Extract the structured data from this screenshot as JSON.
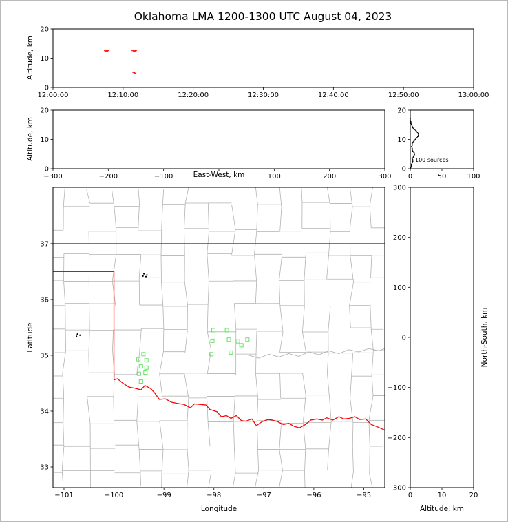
{
  "frame": {
    "title": "Oklahoma LMA 1200-1300 UTC August 04, 2023",
    "background": "#ffffff",
    "border_color": "#b9b9b9"
  },
  "colors": {
    "axis": "#000000",
    "text": "#000000",
    "county_line": "#b3b3b3",
    "river": "#b3b3b3",
    "state_border": "#ff0000",
    "time_series_marker": "#ff2020",
    "map_source_marker": "#63e463",
    "histogram_line": "#000000",
    "station_dot": "#000000"
  },
  "chart_data": [
    {
      "id": "time_height_panel",
      "type": "scatter",
      "xlabel": "",
      "ylabel": "Altitude, km",
      "xlim": [
        0,
        3600
      ],
      "ylim": [
        0,
        20
      ],
      "xticks": [
        {
          "v": 0,
          "label": "12:00:00"
        },
        {
          "v": 600,
          "label": "12:10:00"
        },
        {
          "v": 1200,
          "label": "12:20:00"
        },
        {
          "v": 1800,
          "label": "12:30:00"
        },
        {
          "v": 2400,
          "label": "12:40:00"
        },
        {
          "v": 3000,
          "label": "12:50:00"
        },
        {
          "v": 3600,
          "label": "13:00:00"
        }
      ],
      "yticks": [
        {
          "v": 0,
          "label": "0"
        },
        {
          "v": 10,
          "label": "10"
        },
        {
          "v": 20,
          "label": "20"
        }
      ],
      "series": [
        {
          "name": "vhf-sources-time",
          "marker": "dash",
          "color": "#ff2020",
          "points": [
            [
              448,
              12.6
            ],
            [
              460,
              12.3
            ],
            [
              472,
              12.6
            ],
            [
              684,
              12.6
            ],
            [
              696,
              12.3
            ],
            [
              706,
              12.6
            ],
            [
              692,
              5.1
            ],
            [
              702,
              4.8
            ]
          ]
        }
      ]
    },
    {
      "id": "ew_height_panel",
      "type": "scatter",
      "xlabel": "East-West, km",
      "ylabel": "Altitude, km",
      "xlim": [
        -300,
        300
      ],
      "ylim": [
        0,
        20
      ],
      "xticks": [
        {
          "v": -300,
          "label": "−300"
        },
        {
          "v": -200,
          "label": "−200"
        },
        {
          "v": -100,
          "label": "−100"
        },
        {
          "v": 0,
          "label": ""
        },
        {
          "v": 100,
          "label": "100"
        },
        {
          "v": 200,
          "label": "200"
        },
        {
          "v": 300,
          "label": "300"
        }
      ],
      "yticks": [
        {
          "v": 0,
          "label": "0"
        },
        {
          "v": 10,
          "label": "10"
        },
        {
          "v": 20,
          "label": "20"
        }
      ],
      "series": [
        {
          "name": "vhf-sources-ew",
          "marker": "dot",
          "color": "#000000",
          "points": []
        }
      ]
    },
    {
      "id": "alt_histogram_panel",
      "type": "profile",
      "xlabel": "",
      "ylabel": "",
      "annotation": "100 sources",
      "xlim": [
        0,
        100
      ],
      "ylim": [
        0,
        20
      ],
      "xticks": [
        {
          "v": 0,
          "label": "0"
        },
        {
          "v": 50,
          "label": "50"
        },
        {
          "v": 100,
          "label": "100"
        }
      ],
      "yticks": [
        {
          "v": 0,
          "label": "0"
        },
        {
          "v": 10,
          "label": "10"
        },
        {
          "v": 20,
          "label": "20"
        }
      ],
      "profile": [
        [
          0,
          0
        ],
        [
          0.5,
          1
        ],
        [
          1,
          2
        ],
        [
          1.5,
          2
        ],
        [
          2,
          3
        ],
        [
          2.5,
          4
        ],
        [
          3,
          4
        ],
        [
          3.5,
          3
        ],
        [
          4,
          5
        ],
        [
          4.5,
          6
        ],
        [
          5,
          7
        ],
        [
          5.5,
          6
        ],
        [
          6,
          4
        ],
        [
          6.5,
          3
        ],
        [
          7,
          3
        ],
        [
          7.5,
          2
        ],
        [
          8,
          3
        ],
        [
          8.5,
          3
        ],
        [
          9,
          4
        ],
        [
          9.5,
          6
        ],
        [
          10,
          8
        ],
        [
          10.5,
          10
        ],
        [
          11,
          12
        ],
        [
          11.5,
          13
        ],
        [
          12,
          13
        ],
        [
          12.5,
          11
        ],
        [
          13,
          9
        ],
        [
          13.5,
          6
        ],
        [
          14,
          4
        ],
        [
          14.5,
          3
        ],
        [
          15,
          2
        ],
        [
          15.5,
          1
        ],
        [
          16,
          1
        ],
        [
          16.5,
          0
        ],
        [
          17,
          0
        ]
      ]
    },
    {
      "id": "map_panel",
      "type": "map",
      "xlabel": "Longitude",
      "ylabel": "Latitude",
      "xlim": [
        -101.22,
        -94.58
      ],
      "ylim": [
        32.63,
        38.01
      ],
      "xticks": [
        {
          "v": -101,
          "label": "−101"
        },
        {
          "v": -100,
          "label": "−100"
        },
        {
          "v": -99,
          "label": "−99"
        },
        {
          "v": -98,
          "label": "−98"
        },
        {
          "v": -97,
          "label": "−97"
        },
        {
          "v": -96,
          "label": "−96"
        },
        {
          "v": -95,
          "label": "−95"
        }
      ],
      "yticks": [
        {
          "v": 33,
          "label": "33"
        },
        {
          "v": 34,
          "label": "34"
        },
        {
          "v": 35,
          "label": "35"
        },
        {
          "v": 36,
          "label": "36"
        },
        {
          "v": 37,
          "label": "37"
        }
      ],
      "sources": [
        [
          -98.01,
          35.45
        ],
        [
          -97.74,
          35.45
        ],
        [
          -98.03,
          35.26
        ],
        [
          -97.7,
          35.28
        ],
        [
          -97.52,
          35.25
        ],
        [
          -97.33,
          35.28
        ],
        [
          -98.05,
          35.02
        ],
        [
          -97.66,
          35.05
        ],
        [
          -97.45,
          35.18
        ],
        [
          -99.41,
          35.02
        ],
        [
          -99.51,
          34.93
        ],
        [
          -99.35,
          34.91
        ],
        [
          -99.46,
          34.8
        ],
        [
          -99.35,
          34.78
        ],
        [
          -99.5,
          34.67
        ],
        [
          -99.37,
          34.69
        ],
        [
          -99.46,
          34.53
        ]
      ],
      "station_dots": [
        [
          -99.4,
          36.46
        ],
        [
          -99.34,
          36.44
        ],
        [
          -99.42,
          36.42
        ],
        [
          -99.36,
          36.41
        ],
        [
          -100.73,
          35.38
        ],
        [
          -100.68,
          35.36
        ],
        [
          -100.75,
          35.34
        ]
      ]
    },
    {
      "id": "ns_height_panel",
      "type": "scatter",
      "xlabel": "Altitude, km",
      "ylabel_right": "North-South, km",
      "xlim": [
        0,
        20
      ],
      "ylim": [
        -300,
        300
      ],
      "xticks": [
        {
          "v": 0,
          "label": "0"
        },
        {
          "v": 10,
          "label": "10"
        },
        {
          "v": 20,
          "label": "20"
        }
      ],
      "yticks": [
        {
          "v": 300,
          "label": "300"
        },
        {
          "v": 200,
          "label": "200"
        },
        {
          "v": 100,
          "label": "100"
        },
        {
          "v": 0,
          "label": "0"
        },
        {
          "v": -100,
          "label": "−100"
        },
        {
          "v": -200,
          "label": "−200"
        },
        {
          "v": -300,
          "label": "−300"
        }
      ],
      "series": [
        {
          "name": "vhf-sources-ns",
          "marker": "dot",
          "color": "#000000",
          "points": []
        }
      ]
    }
  ],
  "map_layers": {
    "state_border": [
      [
        [
          -101.22,
          37.0
        ],
        [
          -94.58,
          37.0
        ]
      ],
      [
        [
          -101.22,
          36.5
        ],
        [
          -100.0,
          36.5
        ],
        [
          -100.0,
          34.56
        ]
      ],
      [
        [
          -100.0,
          34.56
        ],
        [
          -99.93,
          34.58
        ],
        [
          -99.82,
          34.5
        ],
        [
          -99.7,
          34.43
        ],
        [
          -99.58,
          34.41
        ],
        [
          -99.46,
          34.38
        ],
        [
          -99.38,
          34.46
        ],
        [
          -99.26,
          34.4
        ],
        [
          -99.19,
          34.33
        ],
        [
          -99.09,
          34.21
        ],
        [
          -98.97,
          34.22
        ],
        [
          -98.85,
          34.16
        ],
        [
          -98.74,
          34.14
        ],
        [
          -98.6,
          34.12
        ],
        [
          -98.47,
          34.06
        ],
        [
          -98.39,
          34.13
        ],
        [
          -98.28,
          34.12
        ],
        [
          -98.16,
          34.11
        ],
        [
          -98.08,
          34.03
        ],
        [
          -97.94,
          33.99
        ],
        [
          -97.85,
          33.9
        ],
        [
          -97.75,
          33.92
        ],
        [
          -97.66,
          33.87
        ],
        [
          -97.55,
          33.92
        ],
        [
          -97.45,
          33.83
        ],
        [
          -97.36,
          33.82
        ],
        [
          -97.24,
          33.86
        ],
        [
          -97.15,
          33.74
        ],
        [
          -97.04,
          33.81
        ],
        [
          -96.92,
          33.85
        ],
        [
          -96.83,
          33.84
        ],
        [
          -96.72,
          33.81
        ],
        [
          -96.61,
          33.76
        ],
        [
          -96.5,
          33.78
        ],
        [
          -96.4,
          33.73
        ],
        [
          -96.29,
          33.7
        ],
        [
          -96.17,
          33.76
        ],
        [
          -96.06,
          33.84
        ],
        [
          -95.94,
          33.86
        ],
        [
          -95.83,
          33.84
        ],
        [
          -95.74,
          33.88
        ],
        [
          -95.62,
          33.84
        ],
        [
          -95.5,
          33.9
        ],
        [
          -95.4,
          33.86
        ],
        [
          -95.29,
          33.87
        ],
        [
          -95.18,
          33.9
        ],
        [
          -95.08,
          33.85
        ],
        [
          -94.96,
          33.86
        ],
        [
          -94.85,
          33.76
        ],
        [
          -94.73,
          33.72
        ],
        [
          -94.58,
          33.66
        ]
      ]
    ],
    "county_grid": {
      "lons": [
        -101.0,
        -100.5,
        -100.0,
        -99.5,
        -99.05,
        -98.55,
        -98.1,
        -97.6,
        -97.15,
        -96.65,
        -96.2,
        -95.7,
        -95.25,
        -94.85
      ],
      "lats": [
        32.9,
        33.35,
        33.8,
        34.25,
        34.65,
        35.05,
        35.45,
        35.9,
        36.35,
        36.8,
        37.25,
        37.7
      ]
    },
    "rivers": [
      [
        [
          -97.3,
          35.0
        ],
        [
          -97.1,
          34.95
        ],
        [
          -96.9,
          35.02
        ],
        [
          -96.7,
          34.97
        ],
        [
          -96.5,
          35.03
        ],
        [
          -96.3,
          34.98
        ],
        [
          -96.1,
          35.06
        ],
        [
          -95.9,
          35.01
        ],
        [
          -95.7,
          35.08
        ],
        [
          -95.5,
          35.03
        ],
        [
          -95.3,
          35.1
        ],
        [
          -95.1,
          35.06
        ],
        [
          -94.9,
          35.12
        ],
        [
          -94.7,
          35.08
        ],
        [
          -94.58,
          35.12
        ]
      ]
    ]
  }
}
